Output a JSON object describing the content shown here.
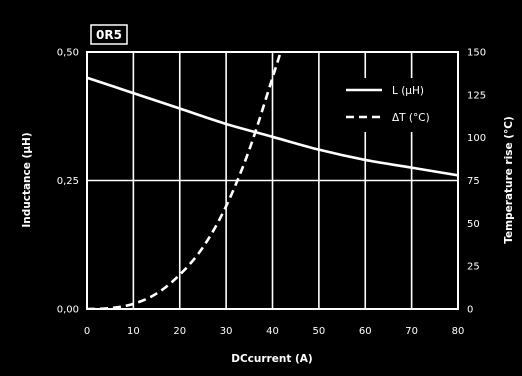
{
  "chart_data": {
    "type": "line",
    "title": "0R5",
    "xlabel": "DCcurrent  (A)",
    "ylabel_left": "Inductance  (µH)",
    "ylabel_right": "Temperature rise  (°C)",
    "xlim": [
      0,
      80
    ],
    "ylim_left": [
      0,
      0.5
    ],
    "ylim_right": [
      0,
      150
    ],
    "x_ticks": [
      "0",
      "10",
      "20",
      "30",
      "40",
      "50",
      "60",
      "70",
      "80"
    ],
    "y_left_ticks": [
      "0,00",
      "0,25",
      "0,50"
    ],
    "y_right_ticks": [
      "0",
      "25",
      "50",
      "75",
      "100",
      "125",
      "150"
    ],
    "grid": true,
    "legend_position": "top-right",
    "series": [
      {
        "name": "L (µH)",
        "axis": "left",
        "style": "solid",
        "x": [
          0,
          10,
          20,
          30,
          40,
          50,
          60,
          70,
          80
        ],
        "y": [
          0.45,
          0.42,
          0.39,
          0.36,
          0.335,
          0.31,
          0.29,
          0.275,
          0.26
        ]
      },
      {
        "name": "ΔT (°C)",
        "axis": "right",
        "style": "dashed",
        "x": [
          0,
          5,
          10,
          15,
          20,
          25,
          30,
          35,
          40,
          42
        ],
        "y": [
          0,
          0.5,
          3,
          9,
          20,
          36,
          60,
          93,
          135,
          152
        ]
      }
    ]
  },
  "colors": {
    "background": "#000000",
    "foreground": "#ffffff"
  }
}
